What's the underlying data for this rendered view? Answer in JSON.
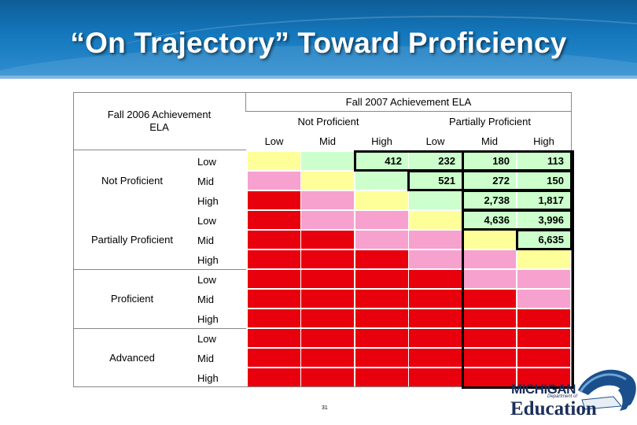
{
  "title": "“On Trajectory” Toward Proficiency",
  "header": {
    "fall2007": "Fall 2007 Achievement ELA",
    "fall2006_line1": "Fall 2006 Achievement",
    "fall2006_line2": "ELA",
    "col_groups": [
      "Not Proficient",
      "Partially Proficient"
    ],
    "col_levels": [
      "Low",
      "Mid",
      "High",
      "Low",
      "Mid",
      "High"
    ]
  },
  "row_groups": [
    "Not Proficient",
    "Partially Proficient",
    "Proficient",
    "Advanced"
  ],
  "row_levels": [
    "Low",
    "Mid",
    "High"
  ],
  "colors": {
    "red": "#e8000d",
    "pink": "#f7a1cf",
    "yellow": "#ffff99",
    "green": "#ccffcc",
    "banner": "#1578bd"
  },
  "grid_colors": [
    [
      "yellow",
      "green",
      "green",
      "green",
      "green",
      "green"
    ],
    [
      "pink",
      "yellow",
      "green",
      "green",
      "green",
      "green"
    ],
    [
      "red",
      "pink",
      "yellow",
      "green",
      "green",
      "green"
    ],
    [
      "red",
      "pink",
      "pink",
      "yellow",
      "green",
      "green"
    ],
    [
      "red",
      "red",
      "pink",
      "pink",
      "yellow",
      "green"
    ],
    [
      "red",
      "red",
      "red",
      "pink",
      "pink",
      "yellow"
    ],
    [
      "red",
      "red",
      "red",
      "red",
      "pink",
      "pink"
    ],
    [
      "red",
      "red",
      "red",
      "red",
      "red",
      "pink"
    ],
    [
      "red",
      "red",
      "red",
      "red",
      "red",
      "red"
    ],
    [
      "red",
      "red",
      "red",
      "red",
      "red",
      "red"
    ],
    [
      "red",
      "red",
      "red",
      "red",
      "red",
      "red"
    ],
    [
      "red",
      "red",
      "red",
      "red",
      "red",
      "red"
    ]
  ],
  "counts": [
    {
      "row": 0,
      "col": 2,
      "text": "412"
    },
    {
      "row": 0,
      "col": 3,
      "text": "232"
    },
    {
      "row": 0,
      "col": 4,
      "text": "180"
    },
    {
      "row": 0,
      "col": 5,
      "text": "113"
    },
    {
      "row": 1,
      "col": 3,
      "text": "521"
    },
    {
      "row": 1,
      "col": 4,
      "text": "272"
    },
    {
      "row": 1,
      "col": 5,
      "text": "150"
    },
    {
      "row": 2,
      "col": 4,
      "text": "2,738"
    },
    {
      "row": 2,
      "col": 5,
      "text": "1,817"
    },
    {
      "row": 3,
      "col": 4,
      "text": "4,636"
    },
    {
      "row": 3,
      "col": 5,
      "text": "3,996"
    },
    {
      "row": 4,
      "col": 5,
      "text": "6,635"
    }
  ],
  "page_number": "31",
  "logo": {
    "michigan": "MICHIGAN",
    "department": "Department of",
    "education": "Education"
  }
}
